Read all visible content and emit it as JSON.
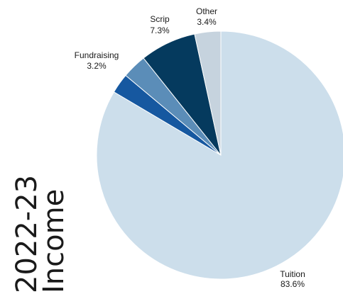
{
  "chart_data": {
    "type": "pie",
    "title_lines": [
      "2022-23",
      "Income"
    ],
    "slices": [
      {
        "label": "Tuition",
        "value": 83.6,
        "value_label": "83.6%",
        "color": "#ccdeeb"
      },
      {
        "label": "",
        "value": 2.6,
        "value_label": "",
        "color": "#1658a0"
      },
      {
        "label": "Fundraising",
        "value": 3.2,
        "value_label": "3.2%",
        "color": "#5b8db8"
      },
      {
        "label": "Scrip",
        "value": 7.3,
        "value_label": "7.3%",
        "color": "#053a5e"
      },
      {
        "label": "Other",
        "value": 3.4,
        "value_label": "3.4%",
        "color": "#c6d3de"
      }
    ],
    "start": "12 o'clock",
    "direction": "clockwise",
    "legend": "none"
  }
}
